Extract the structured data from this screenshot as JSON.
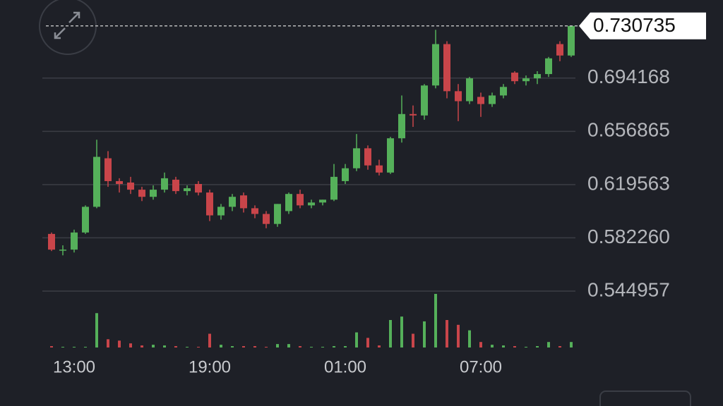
{
  "chart_data": {
    "type": "candlestick",
    "categories": [
      null,
      null,
      "13:00",
      null,
      null,
      null,
      null,
      null,
      null,
      null,
      null,
      null,
      null,
      null,
      "19:00",
      null,
      null,
      null,
      null,
      null,
      null,
      null,
      null,
      null,
      null,
      null,
      "01:00",
      null,
      null,
      null,
      null,
      null,
      null,
      null,
      null,
      null,
      null,
      null,
      "07:00",
      null,
      null,
      null,
      null,
      null,
      null,
      null,
      null
    ],
    "open": [
      0.585,
      0.574,
      0.574,
      0.586,
      0.604,
      0.638,
      0.622,
      0.621,
      0.616,
      0.611,
      0.616,
      0.623,
      0.615,
      0.62,
      0.614,
      0.598,
      0.604,
      0.612,
      0.603,
      0.599,
      0.592,
      0.601,
      0.613,
      0.605,
      0.607,
      0.609,
      0.622,
      0.631,
      0.645,
      0.633,
      0.628,
      0.652,
      0.669,
      0.668,
      0.689,
      0.718,
      0.685,
      0.678,
      0.681,
      0.676,
      0.682,
      0.698,
      0.692,
      0.694,
      0.697,
      0.718,
      0.71
    ],
    "high": [
      0.586,
      0.577,
      0.588,
      0.605,
      0.651,
      0.643,
      0.624,
      0.625,
      0.618,
      0.619,
      0.628,
      0.625,
      0.619,
      0.622,
      0.616,
      0.606,
      0.613,
      0.614,
      0.605,
      0.601,
      0.606,
      0.614,
      0.616,
      0.609,
      0.609,
      0.634,
      0.634,
      0.655,
      0.647,
      0.637,
      0.653,
      0.682,
      0.675,
      0.69,
      0.728,
      0.72,
      0.69,
      0.695,
      0.684,
      0.684,
      0.69,
      0.699,
      0.696,
      0.699,
      0.709,
      0.72,
      0.731
    ],
    "low": [
      0.573,
      0.57,
      0.572,
      0.585,
      0.603,
      0.618,
      0.614,
      0.613,
      0.608,
      0.609,
      0.614,
      0.613,
      0.612,
      0.612,
      0.594,
      0.595,
      0.601,
      0.6,
      0.596,
      0.589,
      0.59,
      0.599,
      0.603,
      0.603,
      0.605,
      0.608,
      0.62,
      0.629,
      0.63,
      0.626,
      0.627,
      0.649,
      0.66,
      0.665,
      0.687,
      0.68,
      0.664,
      0.676,
      0.667,
      0.674,
      0.68,
      0.69,
      0.689,
      0.69,
      0.695,
      0.706,
      0.709
    ],
    "close": [
      0.574,
      0.574,
      0.586,
      0.604,
      0.639,
      0.622,
      0.62,
      0.616,
      0.611,
      0.616,
      0.624,
      0.615,
      0.617,
      0.614,
      0.598,
      0.604,
      0.611,
      0.603,
      0.599,
      0.592,
      0.606,
      0.613,
      0.605,
      0.607,
      0.609,
      0.625,
      0.631,
      0.645,
      0.633,
      0.628,
      0.652,
      0.669,
      0.668,
      0.689,
      0.718,
      0.685,
      0.678,
      0.694,
      0.676,
      0.682,
      0.688,
      0.692,
      0.694,
      0.697,
      0.708,
      0.71,
      0.730735
    ],
    "volume": [
      2,
      1,
      1,
      1,
      50,
      12,
      10,
      6,
      3,
      4,
      3,
      2,
      1,
      1,
      20,
      4,
      2,
      2,
      2,
      1,
      5,
      5,
      2,
      1,
      1,
      2,
      2,
      22,
      14,
      3,
      40,
      45,
      20,
      38,
      78,
      40,
      33,
      25,
      8,
      4,
      3,
      2,
      1,
      2,
      8,
      2,
      8
    ],
    "volume_lim": [
      0,
      80
    ],
    "up_color": "#55b05a",
    "down_color": "#c9454a",
    "ylim": [
      0.54,
      0.74
    ],
    "yticks": [
      0.544957,
      {
        "value": 0.58226,
        "label": "0.582260"
      },
      0.619563,
      0.656865,
      0.694168
    ],
    "grid": true
  }
}
